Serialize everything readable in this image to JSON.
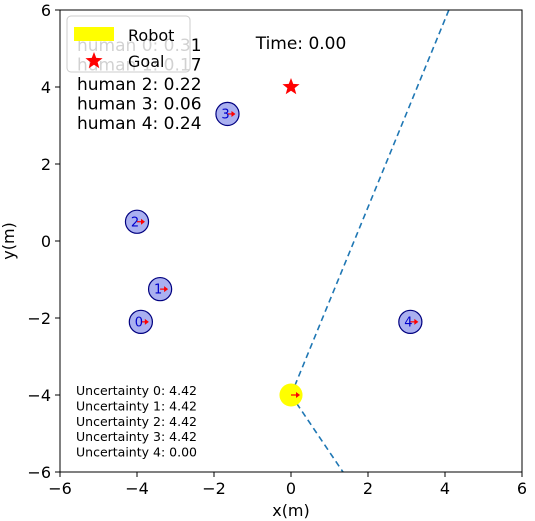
{
  "chart_data": {
    "type": "scatter",
    "xlabel": "x(m)",
    "ylabel": "y(m)",
    "xlim": [
      -6,
      6
    ],
    "ylim": [
      -6,
      6
    ],
    "xticks": [
      -6,
      -4,
      -2,
      0,
      2,
      4,
      6
    ],
    "yticks": [
      -6,
      -4,
      -2,
      0,
      2,
      4,
      6
    ],
    "grid": false,
    "time_text": "Time: 0.00",
    "legend": {
      "placement": "top-left",
      "entries": [
        {
          "label": "Robot",
          "color": "#ffff00",
          "marker": "patch"
        },
        {
          "label": "Goal",
          "color": "#ff0000",
          "marker": "star"
        }
      ]
    },
    "human_risk_lines": [
      "human 0: 0.31",
      "human 1: 0.17",
      "human 2: 0.22",
      "human 3: 0.06",
      "human 4: 0.24"
    ],
    "uncertainty_lines": [
      "Uncertainty 0: 4.42",
      "Uncertainty 1: 4.42",
      "Uncertainty 2: 4.42",
      "Uncertainty 3: 4.42",
      "Uncertainty 4: 0.00"
    ],
    "robot": {
      "x": 0.0,
      "y": -4.0,
      "radius": 0.3,
      "color": "#ffff00"
    },
    "goal": {
      "x": 0.0,
      "y": 4.0,
      "color": "#ff0000"
    },
    "humans": [
      {
        "id": "0",
        "x": -3.9,
        "y": -2.1,
        "radius": 0.3
      },
      {
        "id": "1",
        "x": -3.4,
        "y": -1.25,
        "radius": 0.3
      },
      {
        "id": "2",
        "x": -4.0,
        "y": 0.5,
        "radius": 0.3
      },
      {
        "id": "3",
        "x": -1.65,
        "y": 3.3,
        "radius": 0.3
      },
      {
        "id": "4",
        "x": 3.1,
        "y": -2.1,
        "radius": 0.3
      }
    ],
    "human_fill": "#aab0f0",
    "human_edge": "#000080",
    "fov_lines": [
      {
        "from": [
          0.0,
          -4.0
        ],
        "to": [
          4.1,
          6.0
        ]
      },
      {
        "from": [
          0.0,
          -4.0
        ],
        "to": [
          1.35,
          -6.0
        ]
      }
    ],
    "fov_color": "#1f77b4",
    "heading_color": "#ff0000"
  }
}
